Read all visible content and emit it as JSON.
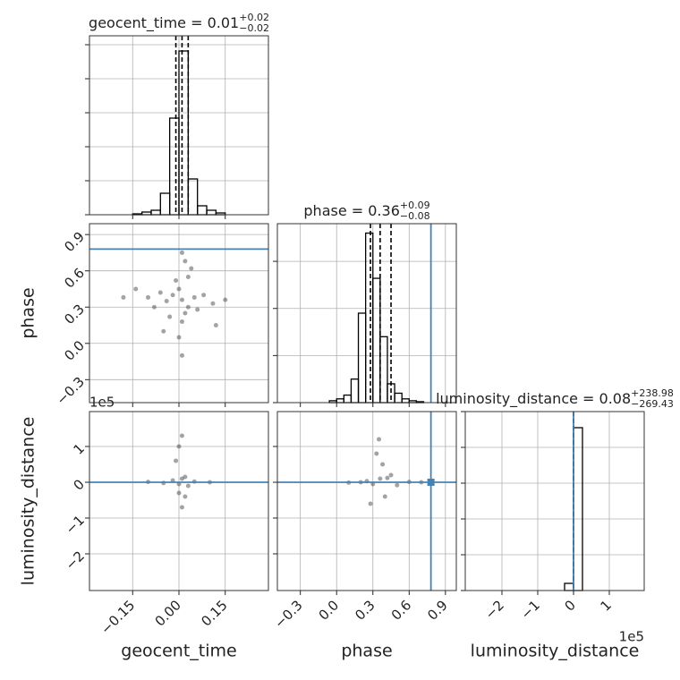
{
  "chart_data": [
    {
      "type": "histogram",
      "title": "geocent_time = 0.01",
      "title_plus": "+0.02",
      "title_minus": "−0.02",
      "bins": [
        -0.15,
        -0.12,
        -0.09,
        -0.06,
        -0.03,
        0,
        0.03,
        0.06,
        0.09,
        0.12,
        0.15
      ],
      "counts": [
        1,
        3,
        5,
        24,
        108,
        183,
        40,
        10,
        5,
        2
      ],
      "quantiles": [
        -0.01,
        0.01,
        0.03
      ],
      "xlim": [
        -0.29,
        0.29
      ],
      "ylim": [
        0,
        200
      ],
      "xticks": [
        {
          "value": -0.15,
          "label": "−0.15"
        },
        {
          "value": 0,
          "label": "0.00"
        },
        0.15
      ],
      "yticks": [
        0,
        38,
        76,
        114,
        152,
        190
      ],
      "show_xticklabels": false,
      "show_yticklabels": false,
      "grid": true
    },
    {
      "type": "scatter",
      "ylabel": "phase",
      "x": [
        0.01,
        -0.02,
        0.03,
        0,
        0.02,
        -0.04,
        0.05,
        -0.01,
        0.01,
        0.06,
        -0.06,
        0.03,
        -0.03,
        0.08,
        -0.08,
        0,
        0.02,
        -0.1,
        0.11,
        0.01,
        0.04,
        -0.05,
        0.15,
        -0.14,
        0.01,
        0.12,
        -0.18
      ],
      "y": [
        0.36,
        0.4,
        0.3,
        0.45,
        0.25,
        0.35,
        0.38,
        0.52,
        0.18,
        0.28,
        0.42,
        0.55,
        0.22,
        0.4,
        0.3,
        0.05,
        0.68,
        0.38,
        0.33,
        -0.1,
        0.62,
        0.1,
        0.36,
        0.45,
        0.75,
        0.15,
        0.38
      ],
      "truth_y": 0.78,
      "truth_color": "#4682b4",
      "xlim": [
        -0.29,
        0.29
      ],
      "ylim": [
        -0.49,
        0.99
      ],
      "xticks": [
        {
          "value": -0.15,
          "label": "−0.15"
        },
        {
          "value": 0,
          "label": "0.00"
        },
        0.15
      ],
      "yticks": [
        {
          "value": -0.3,
          "label": "−0.3"
        },
        {
          "value": 0,
          "label": "0.0"
        },
        0.3,
        0.6,
        0.9
      ],
      "show_xticklabels": false,
      "show_yticklabels": true,
      "grid": true
    },
    {
      "type": "histogram",
      "title": "phase = 0.36",
      "title_plus": "+0.09",
      "title_minus": "−0.08",
      "bins": [
        -0.06,
        0,
        0.06,
        0.12,
        0.18,
        0.24,
        0.3,
        0.36,
        0.42,
        0.48,
        0.54,
        0.6,
        0.66,
        0.72
      ],
      "counts": [
        2,
        4,
        8,
        25,
        95,
        180,
        132,
        70,
        20,
        10,
        4,
        2,
        1
      ],
      "quantiles": [
        0.28,
        0.36,
        0.45
      ],
      "truth_x": 0.78,
      "truth_color": "#4682b4",
      "xlim": [
        -0.49,
        0.99
      ],
      "ylim": [
        0,
        190
      ],
      "xticks": [
        {
          "value": -0.3,
          "label": "−0.3"
        },
        {
          "value": 0,
          "label": "0.0"
        },
        0.3,
        0.6,
        0.9
      ],
      "yticks": [
        0,
        50,
        100,
        150
      ],
      "show_xticklabels": false,
      "show_yticklabels": false,
      "grid": true
    },
    {
      "type": "scatter",
      "xlabel": "geocent_time",
      "ylabel": "luminosity_distance",
      "y_offset": "1e5",
      "x": [
        0.01,
        0,
        0.02,
        -0.02,
        0.03,
        0.01,
        0,
        0.02,
        0.01,
        -0.01,
        0.05,
        -0.05,
        0.1,
        -0.1,
        0
      ],
      "y": [
        10000,
        -5000,
        15000,
        5000,
        -10000,
        130000,
        100000,
        -40000,
        -70000,
        60000,
        2000,
        -2000,
        0,
        1000,
        -30000
      ],
      "truth_y": 0,
      "truth_color": "#4682b4",
      "xlim": [
        -0.29,
        0.29
      ],
      "ylim": [
        -302500,
        197500
      ],
      "xticks": [
        {
          "value": -0.15,
          "label": "−0.15"
        },
        {
          "value": 0,
          "label": "0.00"
        },
        0.15
      ],
      "yticks": [
        {
          "value": -200000,
          "label": "−2"
        },
        {
          "value": -100000,
          "label": "−1"
        },
        {
          "value": 0,
          "label": "0"
        },
        {
          "value": 100000,
          "label": "1"
        }
      ],
      "show_xticklabels": true,
      "show_yticklabels": true,
      "grid": true
    },
    {
      "type": "scatter",
      "xlabel": "phase",
      "x": [
        0.36,
        0.3,
        0.42,
        0.25,
        0.5,
        0.45,
        0.38,
        0.4,
        0.33,
        0.2,
        0.6,
        0.1,
        0.7,
        0.35,
        0.28
      ],
      "y": [
        10000,
        -5000,
        12000,
        3000,
        -8000,
        20000,
        50000,
        -40000,
        80000,
        0,
        1000,
        -1000,
        0,
        120000,
        -60000
      ],
      "truth_x": 0.78,
      "truth_y": 0,
      "truth_color": "#4682b4",
      "xlim": [
        -0.49,
        0.99
      ],
      "ylim": [
        -302500,
        197500
      ],
      "xticks": [
        {
          "value": -0.3,
          "label": "−0.3"
        },
        {
          "value": 0,
          "label": "0.0"
        },
        0.3,
        0.6,
        0.9
      ],
      "yticks": [
        {
          "value": -200000,
          "label": "−2"
        },
        {
          "value": -100000,
          "label": "−1"
        },
        {
          "value": 0,
          "label": "0"
        },
        {
          "value": 100000,
          "label": "1"
        }
      ],
      "show_xticklabels": true,
      "show_yticklabels": false,
      "grid": true
    },
    {
      "type": "histogram",
      "title": "luminosity_distance = 0.08",
      "title_plus": "+238.98",
      "title_minus": "−269.43",
      "xlabel": "luminosity_distance",
      "x_offset": "1e5",
      "bins": [
        -25000,
        0,
        25000
      ],
      "counts": [
        8,
        182
      ],
      "quantiles": [
        -269,
        0.08,
        239
      ],
      "truth_x": 0,
      "truth_color": "#4682b4",
      "xlim": [
        -302500,
        197500
      ],
      "ylim": [
        0,
        200
      ],
      "xticks": [
        {
          "value": -200000,
          "label": "−2"
        },
        {
          "value": -100000,
          "label": "−1"
        },
        {
          "value": 0,
          "label": "0"
        },
        {
          "value": 100000,
          "label": "1"
        }
      ],
      "yticks": [
        0,
        40,
        80,
        120,
        160,
        200
      ],
      "show_xticklabels": true,
      "show_yticklabels": false,
      "grid": true
    }
  ]
}
